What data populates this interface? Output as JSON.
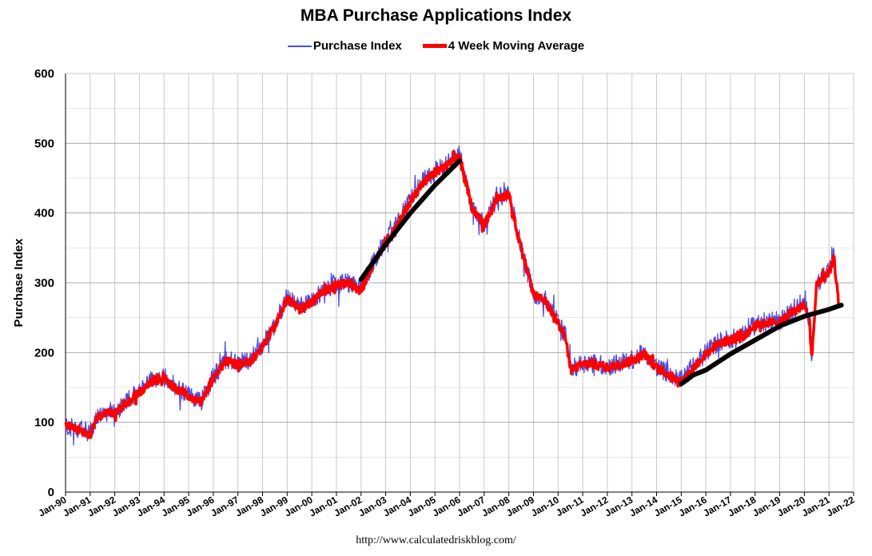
{
  "chart_data": {
    "type": "line",
    "title": "MBA Purchase Applications Index",
    "ylabel": "Purchase Index",
    "xlabel": "",
    "ylim": [
      0,
      600
    ],
    "yticks": [
      0,
      100,
      200,
      300,
      400,
      500,
      600
    ],
    "xlim": [
      1990,
      2022
    ],
    "xticks": [
      "Jan-90",
      "Jan-91",
      "Jan-92",
      "Jan-93",
      "Jan-94",
      "Jan-95",
      "Jan-96",
      "Jan-97",
      "Jan-98",
      "Jan-99",
      "Jan-00",
      "Jan-01",
      "Jan-02",
      "Jan-03",
      "Jan-04",
      "Jan-05",
      "Jan-06",
      "Jan-07",
      "Jan-08",
      "Jan-09",
      "Jan-10",
      "Jan-11",
      "Jan-12",
      "Jan-13",
      "Jan-14",
      "Jan-15",
      "Jan-16",
      "Jan-17",
      "Jan-18",
      "Jan-19",
      "Jan-20",
      "Jan-21",
      "Jan-22"
    ],
    "grid": true,
    "legend_position": "top-center",
    "series": [
      {
        "name": "Purchase Index",
        "color": "#4b4bdf",
        "style": "thin",
        "noise": 14,
        "x": [
          1990.0,
          1990.5,
          1991.0,
          1991.3,
          1991.7,
          1992.0,
          1992.5,
          1993.0,
          1993.5,
          1994.0,
          1994.5,
          1995.0,
          1995.5,
          1996.0,
          1996.5,
          1997.0,
          1997.5,
          1998.0,
          1998.5,
          1999.0,
          1999.5,
          2000.0,
          2000.5,
          2001.0,
          2001.5,
          2002.0,
          2002.5,
          2003.0,
          2003.5,
          2004.0,
          2004.5,
          2005.0,
          2005.5,
          2006.0,
          2006.5,
          2007.0,
          2007.5,
          2008.0,
          2008.5,
          2009.0,
          2009.5,
          2010.0,
          2010.3,
          2010.5,
          2011.0,
          2011.5,
          2012.0,
          2012.5,
          2013.0,
          2013.5,
          2014.0,
          2014.5,
          2015.0,
          2015.5,
          2016.0,
          2016.5,
          2017.0,
          2017.5,
          2018.0,
          2018.5,
          2019.0,
          2019.5,
          2020.0,
          2020.2,
          2020.3,
          2020.5,
          2021.0,
          2021.2,
          2021.4
        ],
        "values": [
          95,
          90,
          85,
          110,
          115,
          115,
          130,
          145,
          160,
          165,
          150,
          140,
          130,
          165,
          190,
          185,
          190,
          210,
          240,
          280,
          265,
          275,
          290,
          300,
          300,
          290,
          330,
          360,
          385,
          420,
          445,
          460,
          470,
          485,
          410,
          385,
          420,
          430,
          350,
          285,
          275,
          245,
          225,
          175,
          185,
          185,
          180,
          185,
          190,
          200,
          180,
          170,
          160,
          180,
          200,
          215,
          220,
          225,
          240,
          245,
          245,
          260,
          270,
          250,
          190,
          300,
          315,
          340,
          270
        ]
      },
      {
        "name": "4 Week Moving Average",
        "color": "#ff0000",
        "style": "thick",
        "noise": 6,
        "x": [
          1990.0,
          1990.5,
          1991.0,
          1991.3,
          1991.7,
          1992.0,
          1992.5,
          1993.0,
          1993.5,
          1994.0,
          1994.5,
          1995.0,
          1995.5,
          1996.0,
          1996.5,
          1997.0,
          1997.5,
          1998.0,
          1998.5,
          1999.0,
          1999.5,
          2000.0,
          2000.5,
          2001.0,
          2001.5,
          2002.0,
          2002.5,
          2003.0,
          2003.5,
          2004.0,
          2004.5,
          2005.0,
          2005.5,
          2006.0,
          2006.5,
          2007.0,
          2007.5,
          2008.0,
          2008.5,
          2009.0,
          2009.5,
          2010.0,
          2010.3,
          2010.5,
          2011.0,
          2011.5,
          2012.0,
          2012.5,
          2013.0,
          2013.5,
          2014.0,
          2014.5,
          2015.0,
          2015.5,
          2016.0,
          2016.5,
          2017.0,
          2017.5,
          2018.0,
          2018.5,
          2019.0,
          2019.5,
          2020.0,
          2020.2,
          2020.3,
          2020.5,
          2021.0,
          2021.2,
          2021.4
        ],
        "values": [
          95,
          90,
          82,
          108,
          112,
          113,
          128,
          143,
          158,
          163,
          148,
          138,
          128,
          163,
          188,
          183,
          188,
          208,
          238,
          278,
          262,
          272,
          288,
          298,
          298,
          288,
          328,
          358,
          383,
          418,
          442,
          458,
          468,
          482,
          408,
          383,
          418,
          428,
          348,
          283,
          272,
          243,
          222,
          175,
          183,
          183,
          178,
          183,
          188,
          198,
          178,
          168,
          158,
          178,
          198,
          213,
          218,
          223,
          238,
          243,
          243,
          258,
          268,
          248,
          192,
          298,
          312,
          336,
          268
        ]
      },
      {
        "name": "",
        "color": "#000000",
        "style": "trend",
        "x": [
          2002.0,
          2003.0,
          2004.0,
          2005.0,
          2006.0
        ],
        "values": [
          305,
          355,
          400,
          440,
          475
        ]
      },
      {
        "name": "",
        "color": "#000000",
        "style": "trend",
        "x": [
          2015.0,
          2015.5,
          2016.0,
          2017.0,
          2018.0,
          2019.0,
          2020.0,
          2021.0,
          2021.5
        ],
        "values": [
          155,
          168,
          175,
          198,
          218,
          238,
          252,
          262,
          268
        ]
      }
    ]
  },
  "footer": {
    "source": "http://www.calculatedriskblog.com/"
  }
}
